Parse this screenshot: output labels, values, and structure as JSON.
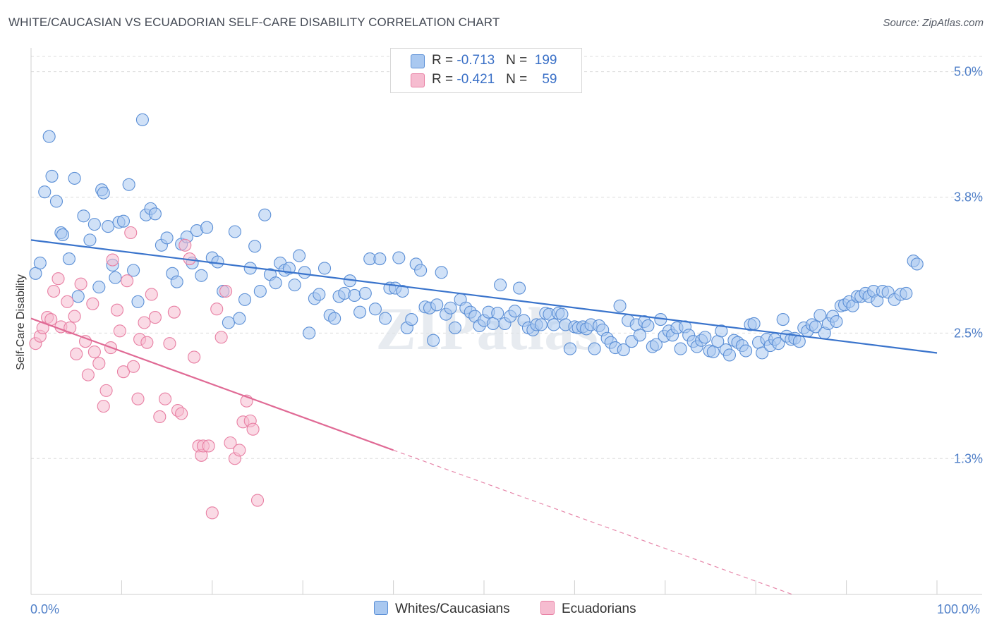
{
  "header": {
    "title": "WHITE/CAUCASIAN VS ECUADORIAN SELF-CARE DISABILITY CORRELATION CHART",
    "source": "Source: ZipAtlas.com"
  },
  "legend": {
    "rows": [
      {
        "r_label": "R = ",
        "r_value": "-0.713",
        "n_label": "N = ",
        "n_value": "199",
        "color": "#a9c8f0",
        "edge": "#5b8fd6"
      },
      {
        "r_label": "R = ",
        "r_value": "-0.421",
        "n_label": "N = ",
        "n_value": "59",
        "color": "#f6bcd0",
        "edge": "#e87fa3"
      }
    ]
  },
  "bottom_legend": [
    "Whites/Caucasians",
    "Ecuadorians"
  ],
  "watermark": "ZIPatlas",
  "chart_data": {
    "type": "scatter",
    "ylabel": "Self-Care Disability",
    "xlim": [
      0,
      100
    ],
    "ylim": [
      0,
      5.2
    ],
    "x_tick_labels": [
      "0.0%",
      "100.0%"
    ],
    "y_ticks": [
      1.3,
      2.5,
      3.8,
      5.0
    ],
    "y_tick_labels": [
      "1.3%",
      "2.5%",
      "3.8%",
      "5.0%"
    ],
    "grid": true,
    "series": [
      {
        "name": "Whites/Caucasians",
        "color": "#a9c8f0",
        "edge": "#5b8fd6",
        "trend": {
          "x0": 0,
          "y0": 3.39,
          "x1": 100,
          "y1": 2.31,
          "color": "#3a74cc"
        },
        "points": [
          [
            0.5,
            3.07
          ],
          [
            1,
            3.17
          ],
          [
            1.5,
            3.85
          ],
          [
            2,
            4.38
          ],
          [
            2.3,
            4.0
          ],
          [
            2.8,
            3.76
          ],
          [
            3.3,
            3.46
          ],
          [
            3.5,
            3.44
          ],
          [
            4.2,
            3.21
          ],
          [
            4.8,
            3.98
          ],
          [
            5.2,
            2.85
          ],
          [
            5.8,
            3.62
          ],
          [
            6.5,
            3.39
          ],
          [
            7,
            3.54
          ],
          [
            7.5,
            2.94
          ],
          [
            7.8,
            3.87
          ],
          [
            8,
            3.84
          ],
          [
            8.5,
            3.52
          ],
          [
            9,
            3.15
          ],
          [
            9.3,
            3.03
          ],
          [
            9.7,
            3.56
          ],
          [
            10.2,
            3.57
          ],
          [
            10.8,
            3.92
          ],
          [
            11.3,
            3.1
          ],
          [
            11.8,
            2.8
          ],
          [
            12.3,
            4.54
          ],
          [
            12.7,
            3.63
          ],
          [
            13.2,
            3.69
          ],
          [
            13.7,
            3.64
          ],
          [
            14.4,
            3.34
          ],
          [
            15,
            3.41
          ],
          [
            15.6,
            3.07
          ],
          [
            16.1,
            2.99
          ],
          [
            16.6,
            3.35
          ],
          [
            17.2,
            3.42
          ],
          [
            17.8,
            3.17
          ],
          [
            18.3,
            3.48
          ],
          [
            18.8,
            3.05
          ],
          [
            19.4,
            3.51
          ],
          [
            20,
            3.22
          ],
          [
            20.6,
            3.18
          ],
          [
            21.2,
            2.9
          ],
          [
            21.8,
            2.6
          ],
          [
            22.5,
            3.47
          ],
          [
            23,
            2.64
          ],
          [
            23.6,
            2.82
          ],
          [
            24.2,
            3.12
          ],
          [
            24.7,
            3.33
          ],
          [
            25.3,
            2.9
          ],
          [
            25.8,
            3.63
          ],
          [
            26.4,
            3.06
          ],
          [
            27,
            2.98
          ],
          [
            27.5,
            3.17
          ],
          [
            28,
            3.1
          ],
          [
            28.5,
            3.12
          ],
          [
            29.1,
            2.96
          ],
          [
            29.6,
            3.24
          ],
          [
            30.2,
            3.08
          ],
          [
            30.7,
            2.5
          ],
          [
            31.3,
            2.83
          ],
          [
            31.8,
            2.87
          ],
          [
            32.4,
            3.12
          ],
          [
            33,
            2.67
          ],
          [
            33.5,
            2.64
          ],
          [
            34,
            2.85
          ],
          [
            34.6,
            2.88
          ],
          [
            35.2,
            3.0
          ],
          [
            35.7,
            2.86
          ],
          [
            36.3,
            2.7
          ],
          [
            36.9,
            2.88
          ],
          [
            37.4,
            3.21
          ],
          [
            38,
            2.73
          ],
          [
            38.5,
            3.21
          ],
          [
            39.1,
            2.64
          ],
          [
            39.6,
            2.93
          ],
          [
            40.2,
            2.93
          ],
          [
            40.6,
            3.22
          ],
          [
            41,
            2.9
          ],
          [
            41.5,
            2.55
          ],
          [
            42,
            2.63
          ],
          [
            42.5,
            3.16
          ],
          [
            43,
            3.1
          ],
          [
            43.5,
            2.75
          ],
          [
            44,
            2.74
          ],
          [
            44.4,
            2.43
          ],
          [
            44.8,
            2.77
          ],
          [
            45.3,
            3.08
          ],
          [
            45.8,
            2.68
          ],
          [
            46.3,
            2.74
          ],
          [
            46.8,
            2.55
          ],
          [
            47.4,
            2.82
          ],
          [
            48,
            2.74
          ],
          [
            48.5,
            2.7
          ],
          [
            49,
            2.66
          ],
          [
            49.5,
            2.57
          ],
          [
            50,
            2.62
          ],
          [
            50.5,
            2.7
          ],
          [
            51,
            2.59
          ],
          [
            51.5,
            2.69
          ],
          [
            51.8,
            2.96
          ],
          [
            52.3,
            2.59
          ],
          [
            52.9,
            2.66
          ],
          [
            53.4,
            2.71
          ],
          [
            53.9,
            2.93
          ],
          [
            54.4,
            2.62
          ],
          [
            54.9,
            2.55
          ],
          [
            55.4,
            2.53
          ],
          [
            55.8,
            2.58
          ],
          [
            56.3,
            2.58
          ],
          [
            56.8,
            2.69
          ],
          [
            57.2,
            2.68
          ],
          [
            57.7,
            2.58
          ],
          [
            58.2,
            2.69
          ],
          [
            58.6,
            2.68
          ],
          [
            59,
            2.58
          ],
          [
            59.5,
            2.35
          ],
          [
            60,
            2.56
          ],
          [
            60.4,
            2.55
          ],
          [
            60.9,
            2.56
          ],
          [
            61.3,
            2.54
          ],
          [
            61.8,
            2.58
          ],
          [
            62.2,
            2.35
          ],
          [
            62.7,
            2.57
          ],
          [
            63.1,
            2.53
          ],
          [
            63.6,
            2.45
          ],
          [
            64,
            2.41
          ],
          [
            64.5,
            2.36
          ],
          [
            65,
            2.76
          ],
          [
            65.4,
            2.34
          ],
          [
            65.9,
            2.62
          ],
          [
            66.3,
            2.42
          ],
          [
            66.8,
            2.58
          ],
          [
            67.2,
            2.48
          ],
          [
            67.7,
            2.61
          ],
          [
            68.1,
            2.57
          ],
          [
            68.6,
            2.37
          ],
          [
            69,
            2.39
          ],
          [
            69.5,
            2.63
          ],
          [
            69.9,
            2.47
          ],
          [
            70.4,
            2.52
          ],
          [
            70.8,
            2.48
          ],
          [
            71.3,
            2.55
          ],
          [
            71.7,
            2.35
          ],
          [
            72.2,
            2.56
          ],
          [
            72.6,
            2.48
          ],
          [
            73.1,
            2.42
          ],
          [
            73.5,
            2.37
          ],
          [
            74,
            2.43
          ],
          [
            74.4,
            2.46
          ],
          [
            74.9,
            2.33
          ],
          [
            75.3,
            2.32
          ],
          [
            75.8,
            2.42
          ],
          [
            76.2,
            2.52
          ],
          [
            76.7,
            2.34
          ],
          [
            77.1,
            2.29
          ],
          [
            77.6,
            2.43
          ],
          [
            78,
            2.41
          ],
          [
            78.5,
            2.38
          ],
          [
            78.9,
            2.33
          ],
          [
            79.4,
            2.58
          ],
          [
            79.8,
            2.59
          ],
          [
            80.3,
            2.41
          ],
          [
            80.7,
            2.31
          ],
          [
            81.2,
            2.44
          ],
          [
            81.6,
            2.38
          ],
          [
            82.1,
            2.44
          ],
          [
            82.5,
            2.4
          ],
          [
            83,
            2.63
          ],
          [
            83.4,
            2.47
          ],
          [
            83.9,
            2.44
          ],
          [
            84.3,
            2.45
          ],
          [
            84.8,
            2.42
          ],
          [
            85.3,
            2.55
          ],
          [
            85.7,
            2.52
          ],
          [
            86.2,
            2.58
          ],
          [
            86.6,
            2.56
          ],
          [
            87.1,
            2.67
          ],
          [
            87.6,
            2.5
          ],
          [
            88,
            2.59
          ],
          [
            88.5,
            2.66
          ],
          [
            88.9,
            2.61
          ],
          [
            89.4,
            2.76
          ],
          [
            89.8,
            2.77
          ],
          [
            90.3,
            2.8
          ],
          [
            90.7,
            2.76
          ],
          [
            91.2,
            2.85
          ],
          [
            91.6,
            2.85
          ],
          [
            92.1,
            2.88
          ],
          [
            92.5,
            2.85
          ],
          [
            93,
            2.9
          ],
          [
            93.4,
            2.81
          ],
          [
            94,
            2.9
          ],
          [
            94.6,
            2.89
          ],
          [
            95.3,
            2.82
          ],
          [
            96,
            2.87
          ],
          [
            96.6,
            2.88
          ],
          [
            97.4,
            3.19
          ],
          [
            97.8,
            3.16
          ]
        ]
      },
      {
        "name": "Ecuadorians",
        "color": "#f6bcd0",
        "edge": "#e87fa3",
        "trend": {
          "x0": 0,
          "y0": 2.64,
          "x1": 40,
          "y1": 1.38,
          "color": "#e06a95"
        },
        "trend_dashed": {
          "x0": 40,
          "y0": 1.38,
          "x1": 100,
          "y1": -0.5
        },
        "points": [
          [
            0.5,
            2.4
          ],
          [
            1,
            2.47
          ],
          [
            1.3,
            2.55
          ],
          [
            1.8,
            2.65
          ],
          [
            2.2,
            2.63
          ],
          [
            2.5,
            2.9
          ],
          [
            3,
            3.02
          ],
          [
            3.3,
            2.56
          ],
          [
            4,
            2.8
          ],
          [
            4.3,
            2.55
          ],
          [
            4.8,
            2.66
          ],
          [
            5,
            2.3
          ],
          [
            5.5,
            2.97
          ],
          [
            6,
            2.42
          ],
          [
            6.3,
            2.1
          ],
          [
            6.8,
            2.78
          ],
          [
            7,
            2.32
          ],
          [
            7.5,
            2.21
          ],
          [
            8,
            1.8
          ],
          [
            8.3,
            1.95
          ],
          [
            8.8,
            2.36
          ],
          [
            9,
            3.2
          ],
          [
            9.5,
            2.72
          ],
          [
            9.8,
            2.52
          ],
          [
            10.2,
            2.13
          ],
          [
            10.6,
            3.0
          ],
          [
            11,
            3.46
          ],
          [
            11.3,
            2.18
          ],
          [
            11.8,
            1.87
          ],
          [
            12,
            2.44
          ],
          [
            12.5,
            2.6
          ],
          [
            12.8,
            2.41
          ],
          [
            13.3,
            2.87
          ],
          [
            13.7,
            2.65
          ],
          [
            14.2,
            1.7
          ],
          [
            14.8,
            1.87
          ],
          [
            15.3,
            2.4
          ],
          [
            15.8,
            2.7
          ],
          [
            16.2,
            1.76
          ],
          [
            16.6,
            1.73
          ],
          [
            17,
            3.34
          ],
          [
            17.5,
            3.21
          ],
          [
            18,
            2.27
          ],
          [
            18.5,
            1.42
          ],
          [
            18.8,
            1.33
          ],
          [
            19,
            1.42
          ],
          [
            19.6,
            1.42
          ],
          [
            20,
            0.78
          ],
          [
            20.5,
            2.73
          ],
          [
            21,
            2.46
          ],
          [
            21.5,
            2.9
          ],
          [
            22,
            1.45
          ],
          [
            22.5,
            1.3
          ],
          [
            23,
            1.38
          ],
          [
            23.4,
            1.65
          ],
          [
            23.8,
            1.85
          ],
          [
            24.2,
            1.66
          ],
          [
            24.5,
            1.58
          ],
          [
            25,
            0.9
          ]
        ]
      }
    ]
  }
}
